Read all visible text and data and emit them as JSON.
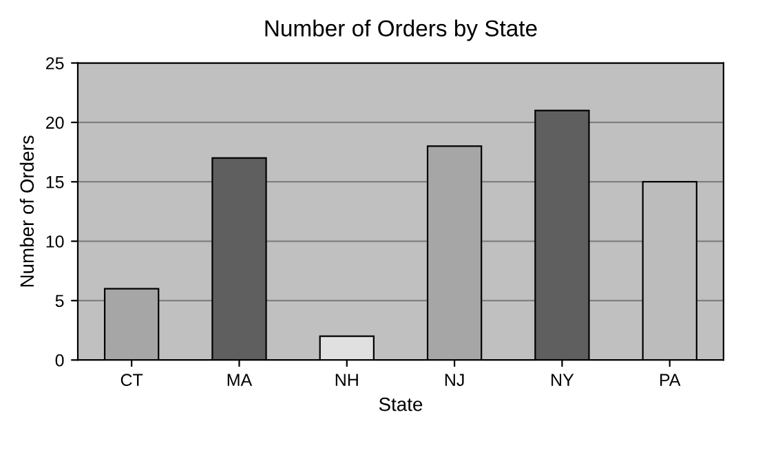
{
  "chart_data": {
    "type": "bar",
    "title": "Number of Orders by State",
    "xlabel": "State",
    "ylabel": "Number of Orders",
    "categories": [
      "CT",
      "MA",
      "NH",
      "NJ",
      "NY",
      "PA"
    ],
    "values": [
      6,
      17,
      2,
      18,
      21,
      15
    ],
    "colors": [
      "#a6a6a6",
      "#5f5f5f",
      "#e0e0e0",
      "#a6a6a6",
      "#5f5f5f",
      "#bcbcbc"
    ],
    "ylim": [
      0,
      25
    ],
    "yticks": [
      0,
      5,
      10,
      15,
      20,
      25
    ],
    "grid": "y",
    "legend": false
  }
}
